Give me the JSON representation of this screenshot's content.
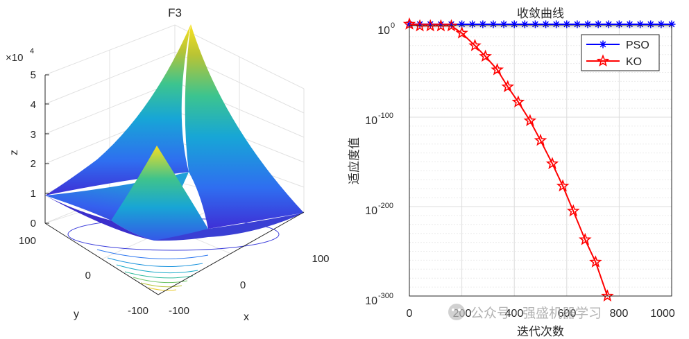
{
  "chart_data": [
    {
      "type": "surface3d",
      "title": "F3",
      "xlabel": "x",
      "ylabel": "y",
      "zlabel": "z",
      "exponent_label": "×10",
      "exponent_power": "4",
      "x_ticks": [
        "-100",
        "0",
        "100"
      ],
      "y_ticks": [
        "-100",
        "0",
        "100"
      ],
      "z_ticks": [
        "0",
        "1",
        "2",
        "3",
        "4",
        "5"
      ],
      "x_range": [
        -100,
        100
      ],
      "y_range": [
        -100,
        100
      ],
      "z_range": [
        0,
        50000
      ],
      "surface": "z = (x + y)^2 + x^2",
      "contour_levels": [
        2000,
        5000,
        9000,
        14000,
        20000,
        30000,
        45000,
        60000
      ],
      "colormap": "parula"
    },
    {
      "type": "line",
      "title": "收敛曲线",
      "xlabel": "迭代次数",
      "ylabel": "适应度值",
      "yscale": "log",
      "xlim": [
        0,
        1000
      ],
      "ylim_exponent": [
        -300,
        10
      ],
      "x_ticks": [
        "0",
        "200",
        "400",
        "600",
        "800",
        "1000"
      ],
      "y_ticks": [
        {
          "base": "10",
          "exp": "0",
          "value": 0
        },
        {
          "base": "10",
          "exp": "-100",
          "value": -100
        },
        {
          "base": "10",
          "exp": "-200",
          "value": -200
        },
        {
          "base": "10",
          "exp": "-300",
          "value": -300
        }
      ],
      "grid": true,
      "legend_position": "top-right",
      "series": [
        {
          "name": "PSO",
          "color": "#0000ff",
          "marker": "asterisk",
          "x": [
            0,
            40,
            80,
            120,
            160,
            200,
            240,
            280,
            320,
            360,
            400,
            440,
            480,
            520,
            560,
            600,
            640,
            680,
            720,
            760,
            800,
            840,
            880,
            920,
            960,
            1000
          ],
          "log10_y": [
            4,
            4,
            4,
            3.9,
            3.9,
            3.9,
            3.9,
            3.9,
            3.9,
            3.9,
            3.9,
            3.9,
            3.9,
            3.9,
            3.9,
            3.9,
            3.9,
            3.9,
            3.9,
            3.9,
            3.9,
            3.9,
            3.9,
            3.9,
            3.9,
            3.9
          ]
        },
        {
          "name": "KO",
          "color": "#ff0000",
          "marker": "pentagram",
          "x": [
            0,
            40,
            80,
            120,
            160,
            200,
            250,
            290,
            335,
            375,
            415,
            460,
            500,
            545,
            585,
            625,
            670,
            710,
            755
          ],
          "log10_y": [
            4,
            2,
            2,
            2,
            2,
            -6,
            -20,
            -32,
            -47,
            -66,
            -83,
            -104,
            -126,
            -152,
            -177,
            -205,
            -237,
            -262,
            -300
          ]
        }
      ]
    }
  ],
  "watermark": "公众号 · 强盛机器学习"
}
